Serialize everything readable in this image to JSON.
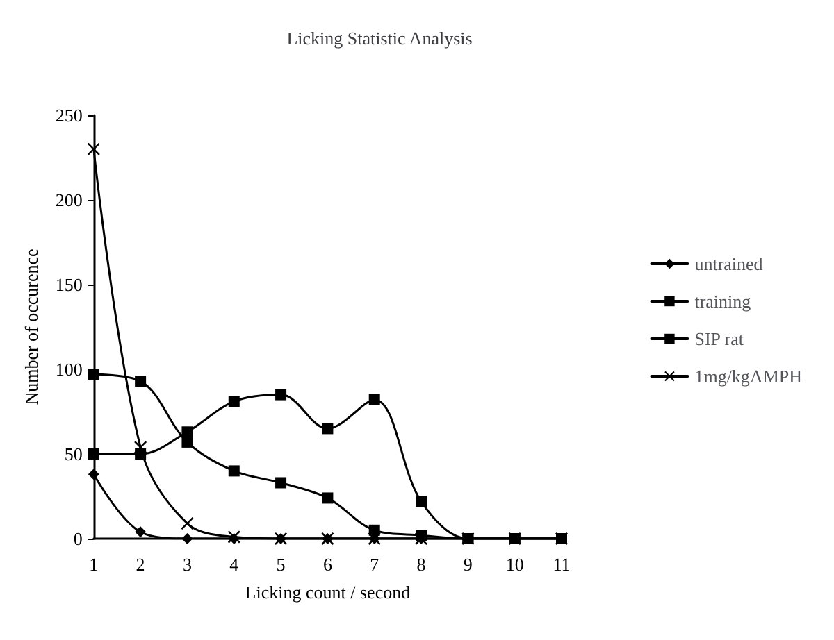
{
  "chart_data": {
    "type": "line",
    "title": "Licking Statistic Analysis",
    "xlabel": "Licking count / second",
    "ylabel": "Number of occurence",
    "categories": [
      "1",
      "2",
      "3",
      "4",
      "5",
      "6",
      "7",
      "8",
      "9",
      "10",
      "11"
    ],
    "series": [
      {
        "name": "untrained",
        "color": "#000000",
        "marker": "diamond",
        "values": [
          38,
          4,
          0,
          0,
          0,
          0,
          0,
          0,
          0,
          0,
          0
        ]
      },
      {
        "name": "training",
        "color": "#000000",
        "marker": "square",
        "values": [
          97,
          93,
          57,
          40,
          33,
          24,
          5,
          2,
          0,
          0,
          0
        ]
      },
      {
        "name": "SIP rat",
        "color": "#000000",
        "marker": "square",
        "values": [
          50,
          50,
          63,
          81,
          85,
          65,
          82,
          22,
          0,
          0,
          0
        ]
      },
      {
        "name": "1mg/kgAMPH",
        "color": "#000000",
        "marker": "cross",
        "values": [
          230,
          54,
          9,
          1,
          0,
          0,
          0,
          0,
          0,
          0,
          0
        ]
      }
    ],
    "ylim": [
      0,
      250
    ],
    "yticks": [
      0,
      50,
      100,
      150,
      200,
      250
    ],
    "grid": false,
    "legend": "right",
    "line_style": "solid"
  }
}
